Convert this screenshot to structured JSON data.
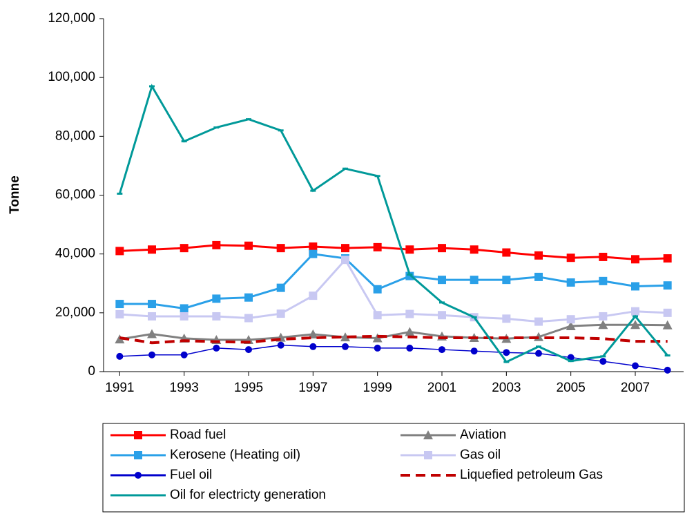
{
  "chart_data": {
    "type": "line",
    "y_label": "Tonne",
    "x": [
      1991,
      1992,
      1993,
      1994,
      1995,
      1996,
      1997,
      1998,
      1999,
      2000,
      2001,
      2002,
      2003,
      2004,
      2005,
      2006,
      2007,
      2008
    ],
    "xlim": [
      1990.5,
      2008.5
    ],
    "xticks": [
      1991,
      1993,
      1995,
      1997,
      1999,
      2001,
      2003,
      2005,
      2007
    ],
    "ylim": [
      0,
      120000
    ],
    "yticks": [
      0,
      {
        "value": 20000,
        "label": "20,000"
      },
      {
        "value": 40000,
        "label": "40,000"
      },
      {
        "value": 60000,
        "label": "60,000"
      },
      {
        "value": 80000,
        "label": "80,000"
      },
      {
        "value": 100000,
        "label": "100,000"
      },
      {
        "value": 120000,
        "label": "120,000"
      }
    ],
    "series": [
      {
        "name": "Road fuel",
        "color": "#ff0000",
        "marker": "square",
        "values": [
          41000,
          41500,
          42000,
          43000,
          42800,
          42000,
          42500,
          42000,
          42300,
          41500,
          42000,
          41500,
          40500,
          39500,
          38700,
          39000,
          38200,
          38500
        ]
      },
      {
        "name": "Aviation",
        "color": "#808080",
        "marker": "triangle",
        "values": [
          11000,
          12800,
          11300,
          10800,
          10800,
          11600,
          12700,
          11700,
          11400,
          13500,
          12000,
          11500,
          11200,
          11800,
          15500,
          15900,
          15900,
          15800
        ]
      },
      {
        "name": "Kerosene (Heating oil)",
        "color": "#2aa0e8",
        "marker": "square",
        "values": [
          23000,
          23000,
          21500,
          24800,
          25200,
          28500,
          40000,
          38500,
          28000,
          32500,
          31200,
          31200,
          31200,
          32200,
          30300,
          30800,
          29000,
          29300
        ]
      },
      {
        "name": "Gas oil",
        "color": "#c8c8f2",
        "marker": "square",
        "values": [
          19500,
          18800,
          18800,
          18800,
          18200,
          19700,
          25800,
          38000,
          19200,
          19600,
          19200,
          18500,
          18000,
          17000,
          17800,
          18800,
          20500,
          20000
        ]
      },
      {
        "name": "Fuel oil",
        "color": "#0000cc",
        "marker": "circle",
        "values": [
          5200,
          5700,
          5700,
          8000,
          7500,
          9000,
          8500,
          8500,
          8000,
          8000,
          7500,
          7000,
          6500,
          6200,
          4800,
          3500,
          2000,
          500
        ]
      },
      {
        "name": "Liquefied petroleum Gas",
        "color": "#c00000",
        "marker": "none",
        "dashed": true,
        "values": [
          11500,
          9800,
          10500,
          10200,
          10000,
          11000,
          11500,
          11800,
          12000,
          11800,
          11500,
          11500,
          11500,
          11500,
          11500,
          11200,
          10300,
          10300
        ]
      },
      {
        "name": "Oil for electricty generation",
        "color": "#009999",
        "marker": "dash",
        "values": [
          60500,
          97000,
          78300,
          83000,
          85800,
          82000,
          61500,
          69000,
          66500,
          33000,
          23500,
          18500,
          3300,
          8500,
          3600,
          5200,
          18800,
          5500
        ]
      }
    ]
  }
}
